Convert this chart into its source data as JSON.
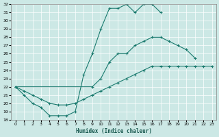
{
  "xlabel": "Humidex (Indice chaleur)",
  "bg_color": "#cce8e5",
  "line_color": "#1a7a6e",
  "grid_color": "#b0d8d4",
  "xmin": 0,
  "xmax": 23,
  "ymin": 18,
  "ymax": 32,
  "curve1_x": [
    0,
    1,
    2,
    3,
    4,
    5,
    6,
    7,
    8,
    9,
    10,
    11,
    12,
    13,
    14,
    15,
    16,
    17
  ],
  "curve1_y": [
    22,
    21,
    20,
    19.5,
    18.5,
    18.5,
    18.5,
    19,
    23.5,
    26,
    29,
    31.5,
    31.5,
    32,
    31,
    32,
    32,
    31
  ],
  "curve2_x": [
    0,
    9,
    10,
    11,
    12,
    13,
    14,
    15,
    16,
    17,
    18,
    19,
    20,
    21
  ],
  "curve2_y": [
    22,
    22,
    23,
    25,
    26,
    26,
    27,
    27.5,
    28,
    28,
    27.5,
    27,
    26.5,
    25.5
  ],
  "curve3_x": [
    0,
    1,
    2,
    3,
    4,
    5,
    6,
    7,
    8,
    9,
    10,
    11,
    12,
    13,
    14,
    15,
    16,
    17,
    18,
    19,
    20,
    21,
    22,
    23
  ],
  "curve3_y": [
    22,
    21.5,
    21,
    20.5,
    20,
    19.8,
    19.8,
    20,
    20.5,
    21,
    21.5,
    22,
    22.5,
    23,
    23.5,
    24,
    24.5,
    24.5,
    24.5,
    24.5,
    24.5,
    24.5,
    24.5,
    24.5
  ]
}
